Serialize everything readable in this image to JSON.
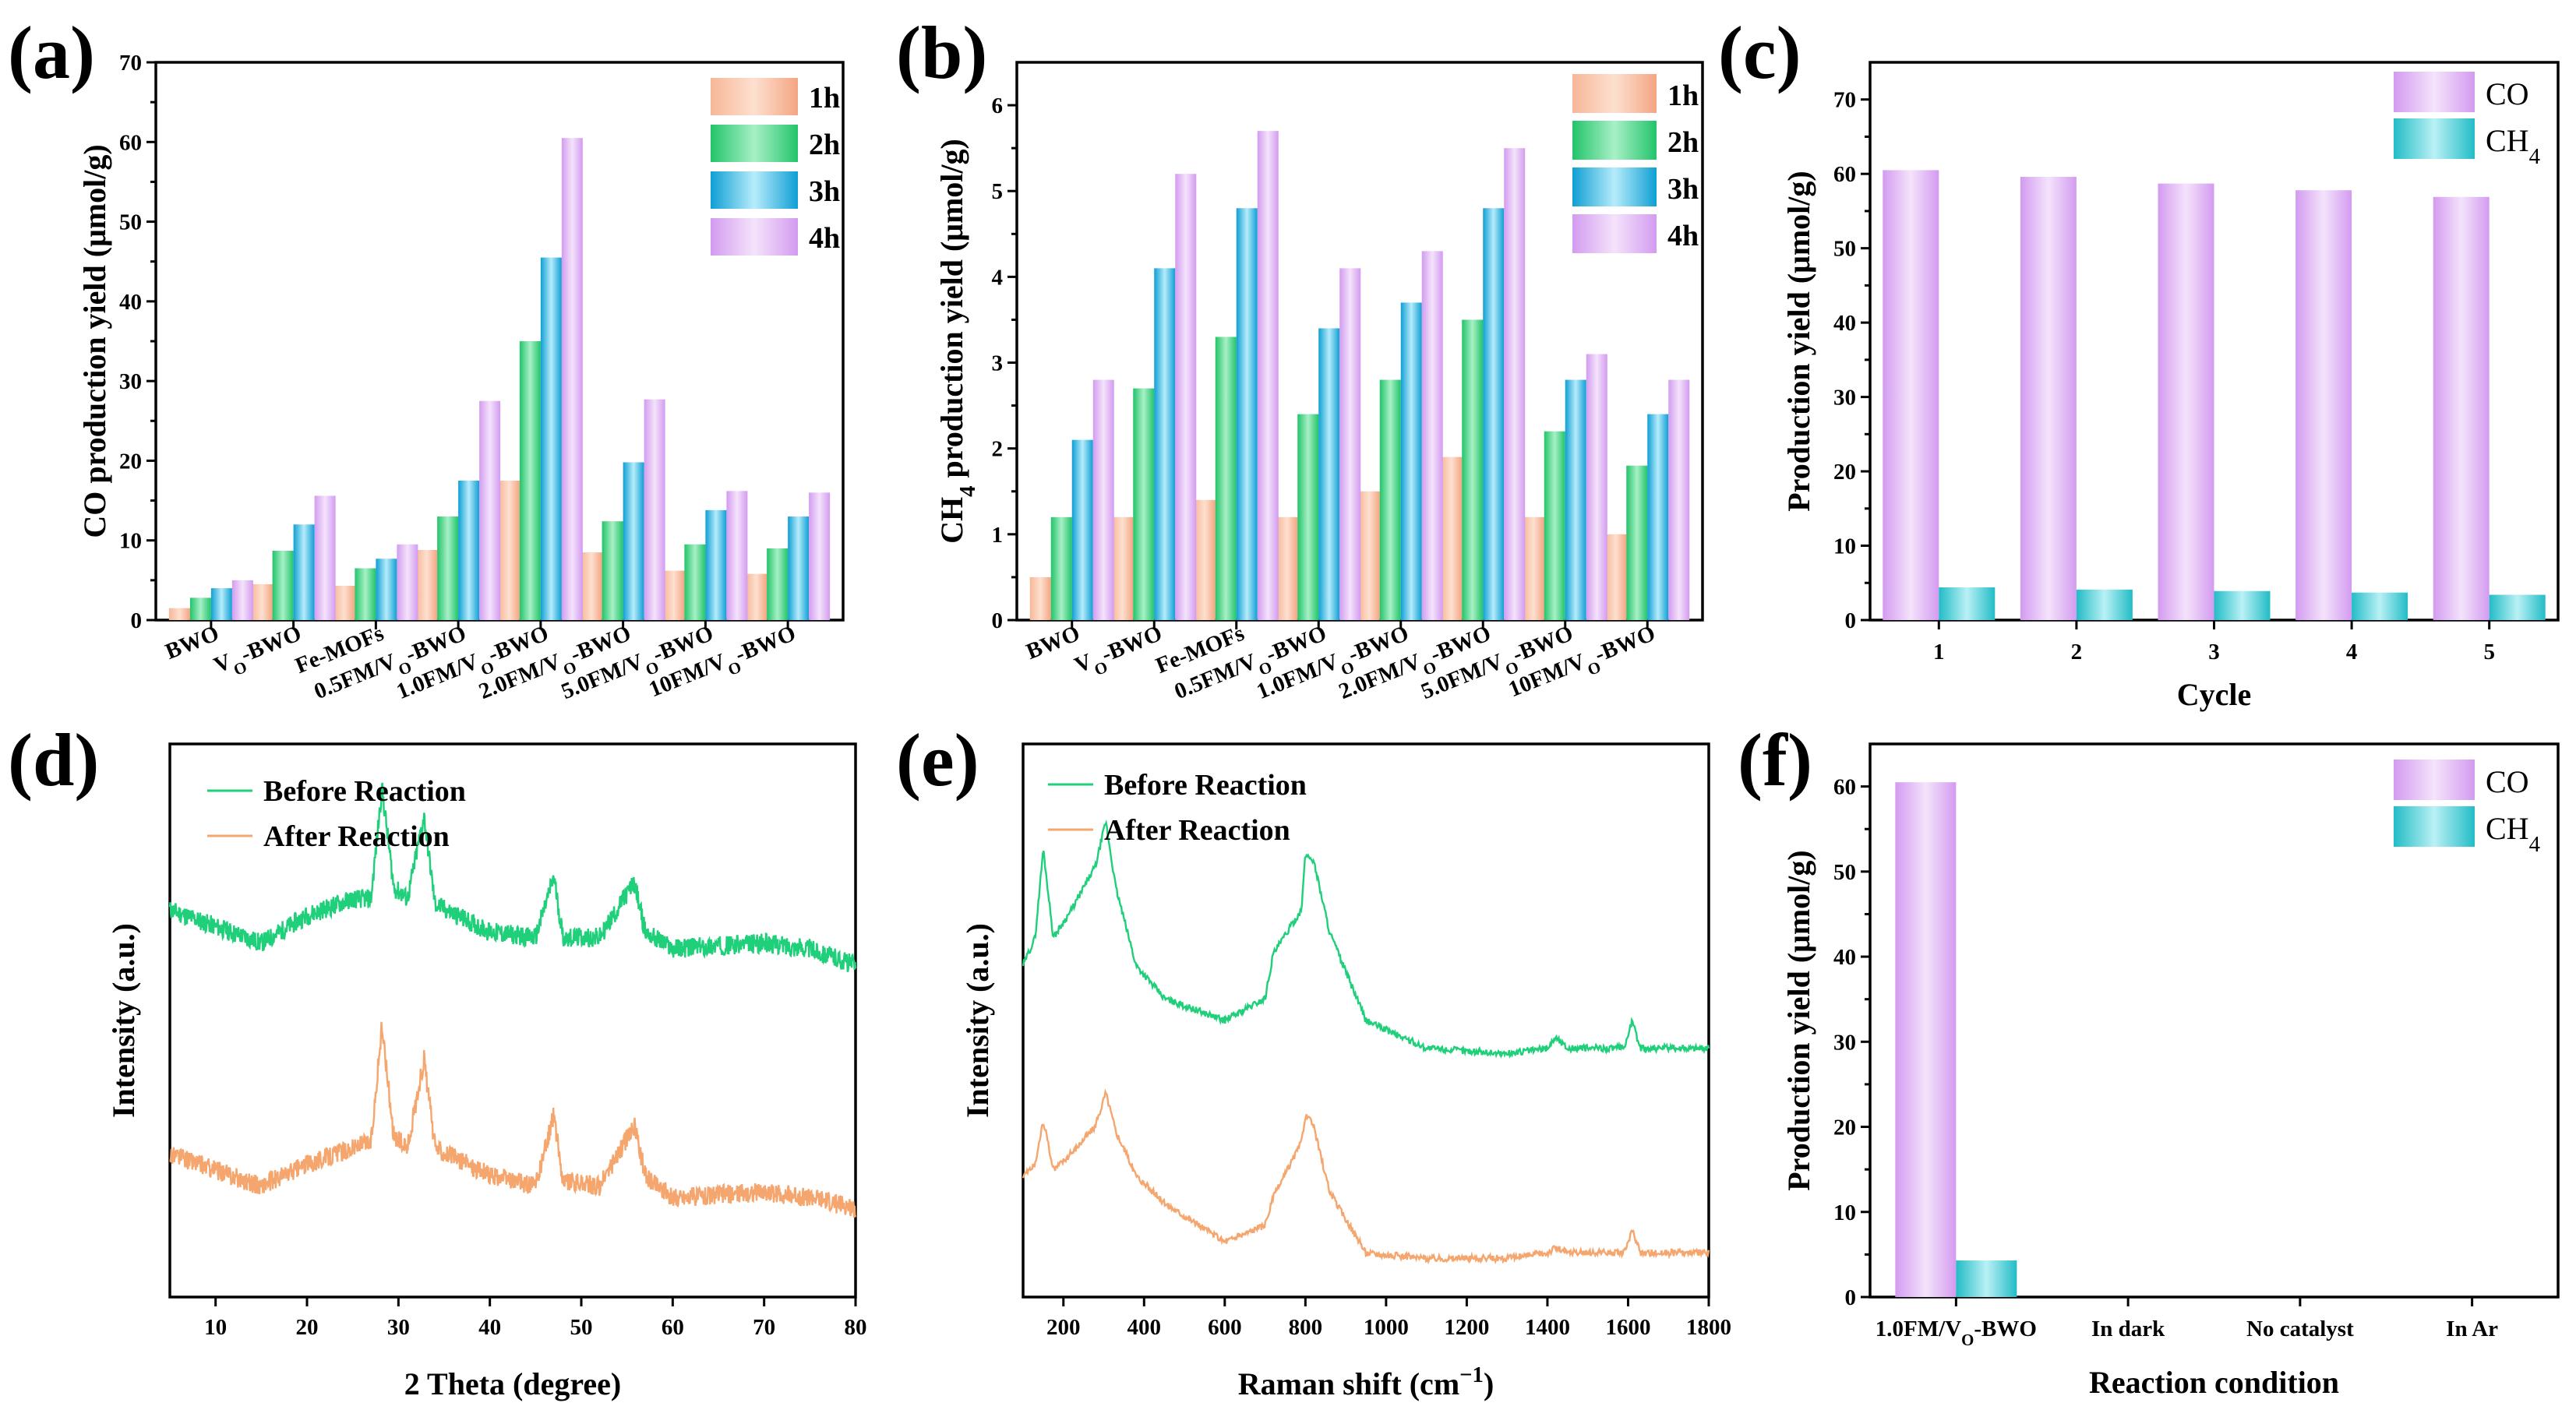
{
  "figure": {
    "panel_labels": [
      "(a)",
      "(b)",
      "(c)",
      "(d)",
      "(e)",
      "(f)"
    ]
  },
  "colors": {
    "h1": "#f4a582",
    "h2": "#2ecc7a",
    "h3": "#1aa8d8",
    "h4": "#d9a0f0",
    "CO": "#d9a0f0",
    "CH4": "#2ec4cc",
    "before": "#1fcf7a",
    "after": "#f5a66e"
  },
  "chart_data": [
    {
      "id": "a",
      "type": "bar",
      "title": "",
      "ylabel": "CO production yield (μmol/g)",
      "categories": [
        "BWO",
        "VO-BWO",
        "Fe-MOFs",
        "0.5FM/VO-BWO",
        "1.0FM/VO-BWO",
        "2.0FM/VO-BWO",
        "5.0FM/VO-BWO",
        "10FM/VO-BWO"
      ],
      "ylim": [
        0,
        70
      ],
      "yticks": [
        0,
        10,
        20,
        30,
        40,
        50,
        60,
        70
      ],
      "series": [
        {
          "name": "1h",
          "values": [
            1.5,
            4.5,
            4.3,
            8.8,
            17.5,
            8.5,
            6.2,
            5.8
          ]
        },
        {
          "name": "2h",
          "values": [
            2.8,
            8.7,
            6.5,
            13.0,
            35.0,
            12.4,
            9.5,
            9.0
          ]
        },
        {
          "name": "3h",
          "values": [
            4.0,
            12.0,
            7.7,
            17.5,
            45.5,
            19.8,
            13.8,
            13.0
          ]
        },
        {
          "name": "4h",
          "values": [
            5.0,
            15.6,
            9.5,
            27.5,
            60.5,
            27.7,
            16.2,
            16.0
          ]
        }
      ]
    },
    {
      "id": "b",
      "type": "bar",
      "title": "",
      "ylabel": "CH4 production yield (μmol/g)",
      "categories": [
        "BWO",
        "VO-BWO",
        "Fe-MOFs",
        "0.5FM/VO-BWO",
        "1.0FM/VO-BWO",
        "2.0FM/VO-BWO",
        "5.0FM/VO-BWO",
        "10FM/VO-BWO"
      ],
      "ylim": [
        0,
        6.5
      ],
      "yticks": [
        0,
        1,
        2,
        3,
        4,
        5,
        6
      ],
      "series": [
        {
          "name": "1h",
          "values": [
            0.5,
            1.2,
            1.4,
            1.2,
            1.5,
            1.9,
            1.2,
            1.0
          ]
        },
        {
          "name": "2h",
          "values": [
            1.2,
            2.7,
            3.3,
            2.4,
            2.8,
            3.5,
            2.2,
            1.8
          ]
        },
        {
          "name": "3h",
          "values": [
            2.1,
            4.1,
            4.8,
            3.4,
            3.7,
            4.8,
            2.8,
            2.4
          ]
        },
        {
          "name": "4h",
          "values": [
            2.8,
            5.2,
            5.7,
            4.1,
            4.3,
            5.5,
            3.1,
            2.8
          ]
        }
      ]
    },
    {
      "id": "c",
      "type": "bar",
      "title": "",
      "xlabel": "Cycle",
      "ylabel": "Production yield (μmol/g)",
      "categories": [
        "1",
        "2",
        "3",
        "4",
        "5"
      ],
      "ylim": [
        0,
        75
      ],
      "yticks": [
        0,
        10,
        20,
        30,
        40,
        50,
        60,
        70
      ],
      "series": [
        {
          "name": "CO",
          "values": [
            60.5,
            59.6,
            58.7,
            57.8,
            56.9
          ]
        },
        {
          "name": "CH4",
          "values": [
            4.4,
            4.1,
            3.9,
            3.7,
            3.4
          ]
        }
      ]
    },
    {
      "id": "d",
      "type": "line",
      "title": "",
      "xlabel": "2 Theta (degree)",
      "ylabel": "Intensity (a.u.)",
      "xlim": [
        5,
        80
      ],
      "xticks": [
        10,
        20,
        30,
        40,
        50,
        60,
        70,
        80
      ],
      "ylim": [
        0,
        1
      ],
      "series": [
        {
          "name": "Before Reaction",
          "baseline": 0.6,
          "points": [
            [
              5,
              0.7
            ],
            [
              10,
              0.67
            ],
            [
              15,
              0.64
            ],
            [
              20,
              0.69
            ],
            [
              25,
              0.72
            ],
            [
              27,
              0.72
            ],
            [
              28.2,
              0.92
            ],
            [
              29.5,
              0.74
            ],
            [
              31,
              0.72
            ],
            [
              32.8,
              0.87
            ],
            [
              34,
              0.71
            ],
            [
              40,
              0.66
            ],
            [
              45,
              0.65
            ],
            [
              47,
              0.76
            ],
            [
              48,
              0.65
            ],
            [
              52,
              0.65
            ],
            [
              55.8,
              0.75
            ],
            [
              57,
              0.66
            ],
            [
              60,
              0.63
            ],
            [
              70,
              0.64
            ],
            [
              75,
              0.63
            ],
            [
              80,
              0.6
            ]
          ]
        },
        {
          "name": "After Reaction",
          "baseline": 0.15,
          "points": [
            [
              5,
              0.26
            ],
            [
              10,
              0.23
            ],
            [
              15,
              0.2
            ],
            [
              20,
              0.24
            ],
            [
              25,
              0.27
            ],
            [
              27,
              0.28
            ],
            [
              28.2,
              0.49
            ],
            [
              29.5,
              0.29
            ],
            [
              31,
              0.27
            ],
            [
              32.8,
              0.43
            ],
            [
              34,
              0.27
            ],
            [
              40,
              0.22
            ],
            [
              45,
              0.2
            ],
            [
              47,
              0.33
            ],
            [
              48,
              0.21
            ],
            [
              52,
              0.2
            ],
            [
              55.8,
              0.31
            ],
            [
              57,
              0.22
            ],
            [
              60,
              0.18
            ],
            [
              70,
              0.19
            ],
            [
              75,
              0.18
            ],
            [
              80,
              0.16
            ]
          ]
        }
      ]
    },
    {
      "id": "e",
      "type": "line",
      "title": "",
      "xlabel": "Raman shift (cm−1)",
      "ylabel": "Intensity (a.u.)",
      "xlim": [
        100,
        1800
      ],
      "xticks": [
        200,
        400,
        600,
        800,
        1000,
        1200,
        1400,
        1600,
        1800
      ],
      "ylim": [
        0,
        1
      ],
      "series": [
        {
          "name": "Before Reaction",
          "points": [
            [
              100,
              0.6
            ],
            [
              130,
              0.65
            ],
            [
              150,
              0.81
            ],
            [
              175,
              0.65
            ],
            [
              220,
              0.7
            ],
            [
              280,
              0.78
            ],
            [
              305,
              0.86
            ],
            [
              330,
              0.74
            ],
            [
              380,
              0.6
            ],
            [
              450,
              0.54
            ],
            [
              600,
              0.5
            ],
            [
              700,
              0.54
            ],
            [
              720,
              0.62
            ],
            [
              790,
              0.7
            ],
            [
              800,
              0.8
            ],
            [
              820,
              0.79
            ],
            [
              860,
              0.66
            ],
            [
              950,
              0.5
            ],
            [
              1100,
              0.45
            ],
            [
              1300,
              0.44
            ],
            [
              1400,
              0.45
            ],
            [
              1420,
              0.47
            ],
            [
              1450,
              0.45
            ],
            [
              1590,
              0.45
            ],
            [
              1610,
              0.5
            ],
            [
              1630,
              0.45
            ],
            [
              1800,
              0.45
            ]
          ]
        },
        {
          "name": "After Reaction",
          "points": [
            [
              100,
              0.22
            ],
            [
              130,
              0.24
            ],
            [
              150,
              0.32
            ],
            [
              175,
              0.23
            ],
            [
              220,
              0.26
            ],
            [
              280,
              0.31
            ],
            [
              305,
              0.37
            ],
            [
              330,
              0.3
            ],
            [
              380,
              0.22
            ],
            [
              450,
              0.17
            ],
            [
              600,
              0.1
            ],
            [
              700,
              0.13
            ],
            [
              720,
              0.18
            ],
            [
              790,
              0.28
            ],
            [
              800,
              0.33
            ],
            [
              820,
              0.31
            ],
            [
              860,
              0.19
            ],
            [
              950,
              0.08
            ],
            [
              1100,
              0.07
            ],
            [
              1300,
              0.07
            ],
            [
              1400,
              0.08
            ],
            [
              1420,
              0.09
            ],
            [
              1450,
              0.08
            ],
            [
              1590,
              0.08
            ],
            [
              1610,
              0.12
            ],
            [
              1630,
              0.08
            ],
            [
              1800,
              0.08
            ]
          ]
        }
      ]
    },
    {
      "id": "f",
      "type": "bar",
      "title": "",
      "xlabel": "Reaction condition",
      "ylabel": "Production yield (μmol/g)",
      "categories": [
        "1.0FM/VO-BWO",
        "In dark",
        "No catalyst",
        "In Ar"
      ],
      "ylim": [
        0,
        65
      ],
      "yticks": [
        0,
        10,
        20,
        30,
        40,
        50,
        60
      ],
      "series": [
        {
          "name": "CO",
          "values": [
            60.5,
            0,
            0,
            0
          ]
        },
        {
          "name": "CH4",
          "values": [
            4.3,
            0,
            0,
            0
          ]
        }
      ]
    }
  ]
}
